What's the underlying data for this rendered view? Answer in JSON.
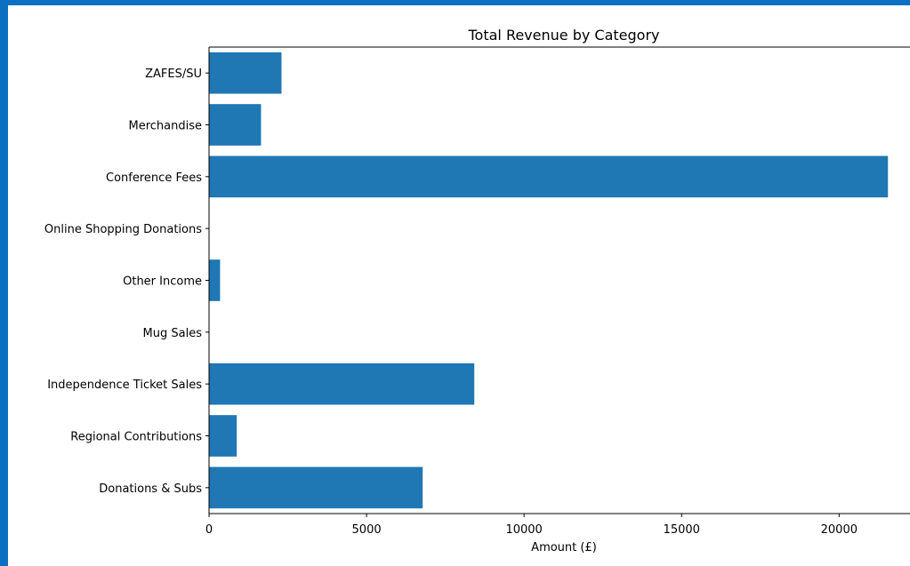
{
  "colors": {
    "frame": "#0b6fc2",
    "bar": "#1f77b4"
  },
  "chart_data": {
    "type": "bar",
    "orientation": "horizontal",
    "title": "Total Revenue by Category",
    "xlabel": "Amount (£)",
    "ylabel": "",
    "categories": [
      "ZAFES/SU",
      "Merchandise",
      "Conference Fees",
      "Online Shopping Donations",
      "Other Income",
      "Mug Sales",
      "Independence Ticket Sales",
      "Regional Contributions",
      "Donations & Subs"
    ],
    "values": [
      2300,
      1650,
      21550,
      0,
      350,
      0,
      8420,
      880,
      6780
    ],
    "xlim": [
      0,
      22250
    ],
    "xticks": [
      0,
      5000,
      10000,
      15000,
      20000
    ],
    "grid": false
  }
}
